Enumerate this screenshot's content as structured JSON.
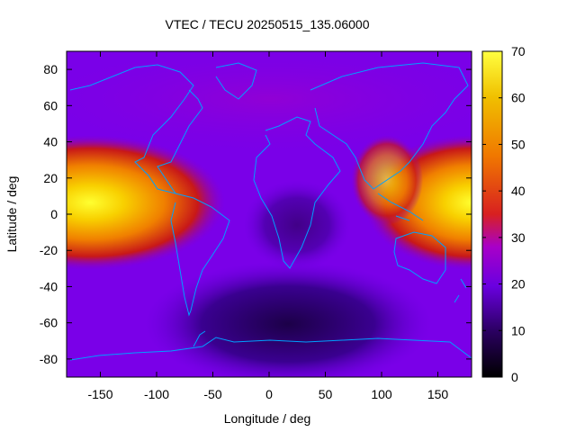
{
  "chart_data": {
    "type": "heatmap",
    "title": "VTEC / TECU 20250515_135.06000",
    "xlabel": "Longitude / deg",
    "ylabel": "Latitude / deg",
    "xlim": [
      -180,
      180
    ],
    "ylim": [
      -90,
      90
    ],
    "x_ticks": [
      -150,
      -100,
      -50,
      0,
      50,
      100,
      150
    ],
    "y_ticks": [
      -80,
      -60,
      -40,
      -20,
      0,
      20,
      40,
      60,
      80
    ],
    "colorbar": {
      "range": [
        0,
        70
      ],
      "ticks": [
        0,
        10,
        20,
        30,
        40,
        50,
        60,
        70
      ],
      "palette": [
        "#000000",
        "#2a0060",
        "#6a00e0",
        "#a800c8",
        "#d82020",
        "#f07800",
        "#f0c000",
        "#ffff40"
      ]
    },
    "grid": false,
    "overlay": "coastlines",
    "coastline_color": "#00a0ff",
    "peaks": [
      {
        "longitude": -170,
        "latitude": 10,
        "vtec": 68
      },
      {
        "longitude": 180,
        "latitude": 10,
        "vtec": 68
      }
    ],
    "background_vtec": 20
  }
}
